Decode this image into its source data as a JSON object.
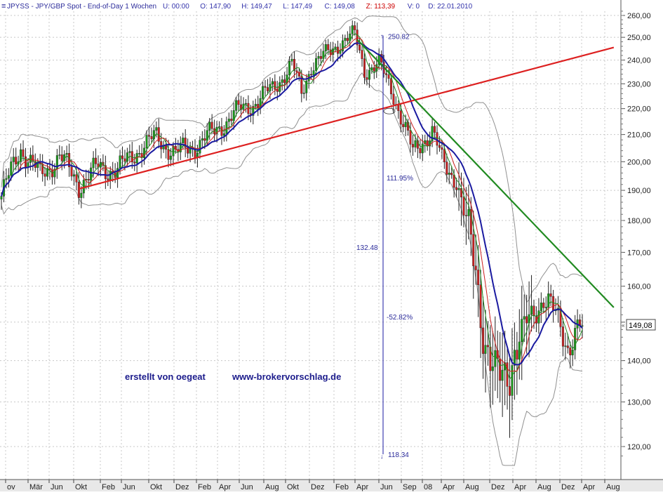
{
  "header": {
    "symbol": "JPYSS",
    "description": "JPY/GBP Spot",
    "period": "End-of-Day 1 Wochen",
    "fields": [
      {
        "label": "U:",
        "value": "00:00",
        "color": "#3232aa"
      },
      {
        "label": "O:",
        "value": "147,90",
        "color": "#3232aa"
      },
      {
        "label": "H:",
        "value": "149,47",
        "color": "#3232aa"
      },
      {
        "label": "L:",
        "value": "147,49",
        "color": "#3232aa"
      },
      {
        "label": "C:",
        "value": "149,08",
        "color": "#3232aa"
      },
      {
        "label": "Z:",
        "value": "113,39",
        "color": "#cc0000"
      },
      {
        "label": "V:",
        "value": "0",
        "color": "#3232aa"
      },
      {
        "label": "D:",
        "value": "22.01.2010",
        "color": "#3232aa"
      }
    ]
  },
  "watermark": {
    "author": "erstellt von oegeat",
    "site": "www-brokervorschlag.de"
  },
  "colors": {
    "text_blue": "#2b2b9a",
    "up": "#1a9a1a",
    "down": "#cc2020",
    "ma_blue": "#1a1aa0",
    "trend_red": "#dd2020",
    "trend_green": "#208a20",
    "bands": "#909090",
    "grid": "#c8c8c8"
  },
  "chart_data": {
    "type": "candlestick",
    "y_scale": "log",
    "ylim": [
      115,
      262
    ],
    "y_ticks": [
      "260,00",
      "250,00",
      "240,00",
      "230,00",
      "220,00",
      "210,00",
      "200,00",
      "190,00",
      "180,00",
      "170,00",
      "160,00",
      "150,00",
      "140,00",
      "130,00",
      "120,00"
    ],
    "y_tick_values": [
      260,
      250,
      240,
      230,
      220,
      210,
      200,
      190,
      180,
      170,
      160,
      150,
      140,
      130,
      120
    ],
    "x_labels": [
      "ov",
      "Mär",
      "Jun",
      "Okt",
      "Feb",
      "Jun",
      "Okt",
      "Dez",
      "Feb",
      "Apr",
      "Jun",
      "Aug",
      "Okt",
      "Dez",
      "Feb",
      "Apr",
      "Jun",
      "Sep",
      "08",
      "Apr",
      "Aug",
      "Dez",
      "Apr",
      "Aug",
      "Dez",
      "Apr",
      "Aug"
    ],
    "last_price_label": "149,08",
    "last_price": 149.08,
    "series_close_anchors": [
      [
        0,
        188
      ],
      [
        8,
        205
      ],
      [
        16,
        195
      ],
      [
        24,
        202
      ],
      [
        32,
        192
      ],
      [
        40,
        198
      ],
      [
        48,
        197
      ],
      [
        56,
        204
      ],
      [
        64,
        209
      ],
      [
        72,
        203
      ],
      [
        80,
        206
      ],
      [
        88,
        211
      ],
      [
        96,
        218
      ],
      [
        104,
        222
      ],
      [
        112,
        228
      ],
      [
        120,
        238
      ],
      [
        124,
        226
      ],
      [
        128,
        238
      ],
      [
        134,
        242
      ],
      [
        140,
        248
      ],
      [
        146,
        250.82
      ],
      [
        150,
        236
      ],
      [
        156,
        238
      ],
      [
        162,
        226
      ],
      [
        166,
        214
      ],
      [
        170,
        203
      ],
      [
        174,
        208
      ],
      [
        178,
        211
      ],
      [
        182,
        200
      ],
      [
        188,
        194
      ],
      [
        192,
        178
      ],
      [
        196,
        165
      ],
      [
        200,
        145
      ],
      [
        204,
        134
      ],
      [
        208,
        137
      ],
      [
        212,
        143
      ],
      [
        216,
        148
      ],
      [
        220,
        153
      ],
      [
        224,
        157
      ],
      [
        226,
        155
      ],
      [
        230,
        150
      ],
      [
        234,
        144
      ],
      [
        238,
        148
      ],
      [
        240,
        149.08
      ]
    ],
    "annotations": [
      {
        "text": "250.82",
        "value": 250.82
      },
      {
        "text": "118.34",
        "value": 118.34
      },
      {
        "text": "111.95%"
      },
      {
        "text": "132.48"
      },
      {
        "text": "-52.82%"
      }
    ],
    "trendlines": [
      {
        "name": "support",
        "color": "red",
        "from": [
          32,
          190.5
        ],
        "to": [
          253,
          245.5
        ]
      },
      {
        "name": "resistance",
        "color": "green",
        "from": [
          147,
          249
        ],
        "to": [
          253,
          154
        ]
      }
    ],
    "indicators": [
      "moving-average-blue",
      "moving-average-red",
      "moving-average-green",
      "bollinger-bands"
    ],
    "grid": true
  }
}
